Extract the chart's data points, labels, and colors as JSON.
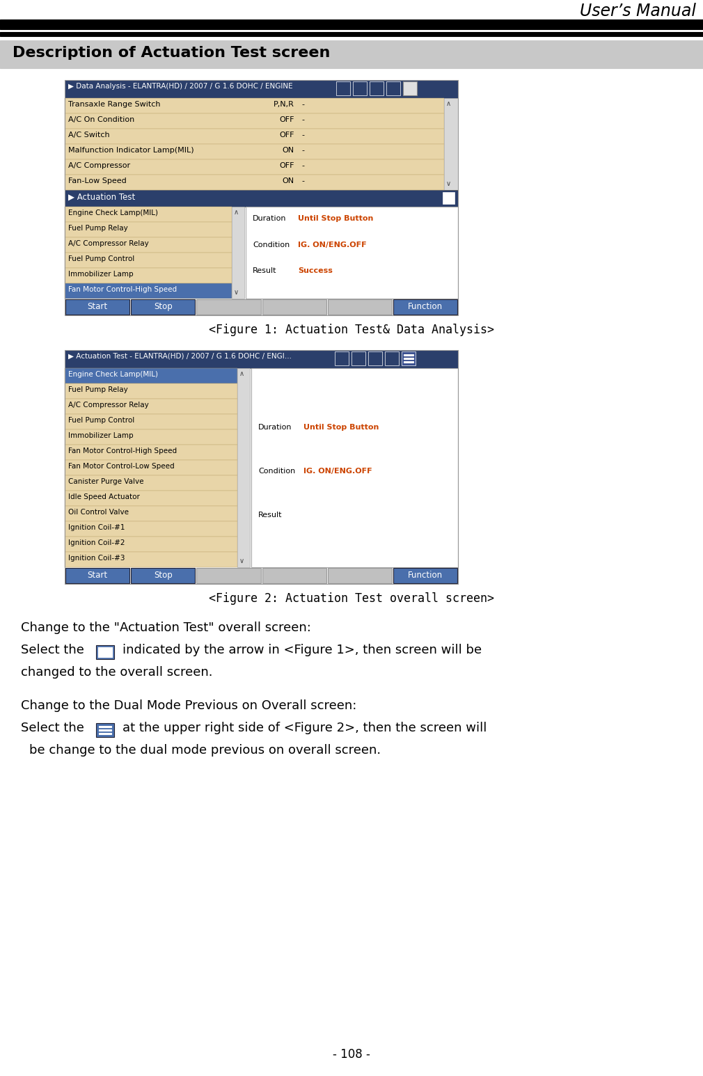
{
  "title_right": "User’s Manual",
  "section_bg_color": "#c8c8c8",
  "section_title": "Description of Actuation Test screen",
  "fig1_caption": "<Figure 1: Actuation Test& Data Analysis>",
  "fig2_caption": "<Figure 2: Actuation Test overall screen>",
  "fig1_header": "▶ Data Analysis - ELANTRA(HD) / 2007 / G 1.6 DOHC / ENGINE",
  "fig2_header": "▶ Actuation Test - ELANTRA(HD) / 2007 / G 1.6 DOHC / ENGI…",
  "header_bg": "#2b3f6b",
  "table_bg": "#e8d5a8",
  "selected_row_bg": "#4a6fac",
  "fig1_rows": [
    [
      "Transaxle Range Switch",
      "P,N,R",
      "-"
    ],
    [
      "A/C On Condition",
      "OFF",
      "-"
    ],
    [
      "A/C Switch",
      "OFF",
      "-"
    ],
    [
      "Malfunction Indicator Lamp(MIL)",
      "ON",
      "-"
    ],
    [
      "A/C Compressor",
      "OFF",
      "-"
    ],
    [
      "Fan-Low Speed",
      "ON",
      "-"
    ]
  ],
  "fig1_actuation_rows": [
    "Engine Check Lamp(MIL)",
    "Fuel Pump Relay",
    "A/C Compressor Relay",
    "Fuel Pump Control",
    "Immobilizer Lamp",
    "Fan Motor Control-High Speed"
  ],
  "fig1_selected_idx": 5,
  "fig2_rows": [
    "Engine Check Lamp(MIL)",
    "Fuel Pump Relay",
    "A/C Compressor Relay",
    "Fuel Pump Control",
    "Immobilizer Lamp",
    "Fan Motor Control-High Speed",
    "Fan Motor Control-Low Speed",
    "Canister Purge Valve",
    "Idle Speed Actuator",
    "Oil Control Valve",
    "Ignition Coil-#1",
    "Ignition Coil-#2",
    "Ignition Coil-#3"
  ],
  "fig2_selected_idx": 0,
  "info_duration": "Until Stop Button",
  "info_condition": "IG. ON/ENG.OFF",
  "info_result": "Success",
  "info_orange": "#cc4400",
  "button_bg": "#4a6fac",
  "gray_bg": "#c0c0c0",
  "footer": "- 108 -",
  "white": "#ffffff",
  "black": "#000000"
}
